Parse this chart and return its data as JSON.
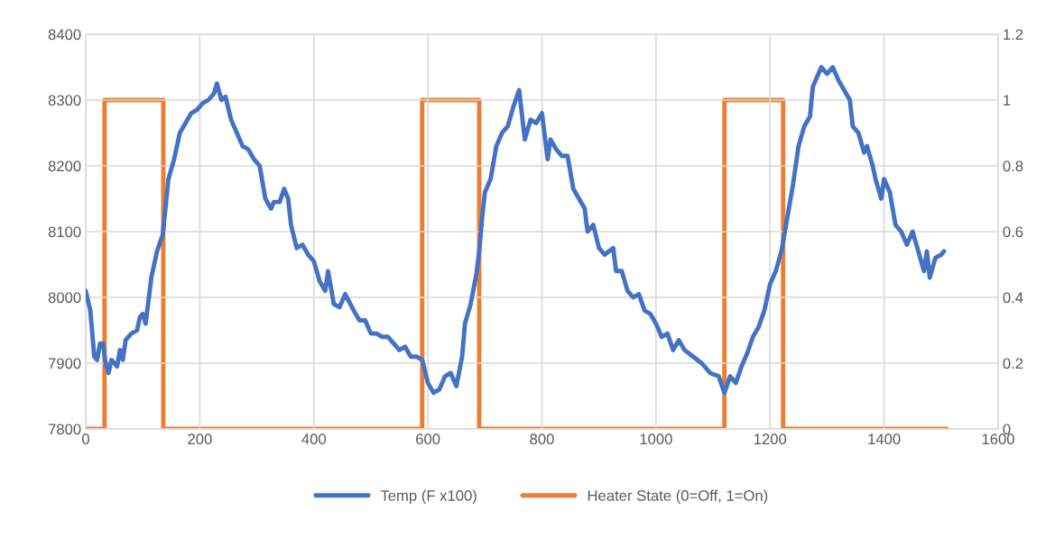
{
  "chart_data": {
    "type": "line",
    "xlim": [
      0,
      1600
    ],
    "xticks": [
      0,
      200,
      400,
      600,
      800,
      1000,
      1200,
      1400,
      1600
    ],
    "ylim": [
      7800,
      8400
    ],
    "yticks": [
      7800,
      7900,
      8000,
      8100,
      8200,
      8300,
      8400
    ],
    "y2lim": [
      0,
      1.2
    ],
    "y2ticks": [
      0,
      0.2,
      0.4,
      0.6,
      0.8,
      1,
      1.2
    ],
    "grid": true,
    "legend": "bottom",
    "series": [
      {
        "name": "Temp (F x100)",
        "color": "#4472c4",
        "x": [
          0,
          8,
          15,
          20,
          25,
          30,
          35,
          40,
          45,
          55,
          60,
          65,
          70,
          80,
          90,
          95,
          100,
          105,
          115,
          125,
          135,
          145,
          155,
          165,
          175,
          185,
          195,
          205,
          215,
          225,
          230,
          238,
          245,
          255,
          265,
          275,
          285,
          295,
          305,
          315,
          325,
          330,
          340,
          348,
          355,
          360,
          370,
          380,
          390,
          400,
          410,
          420,
          425,
          435,
          445,
          455,
          470,
          480,
          490,
          500,
          510,
          520,
          530,
          540,
          550,
          560,
          570,
          580,
          590,
          600,
          610,
          620,
          630,
          640,
          650,
          660,
          665,
          675,
          685,
          690,
          695,
          700,
          710,
          720,
          730,
          740,
          750,
          760,
          770,
          780,
          790,
          800,
          810,
          815,
          825,
          835,
          845,
          855,
          865,
          875,
          880,
          890,
          900,
          910,
          925,
          930,
          940,
          950,
          960,
          970,
          980,
          990,
          1000,
          1010,
          1020,
          1030,
          1040,
          1050,
          1065,
          1080,
          1095,
          1110,
          1120,
          1130,
          1140,
          1150,
          1160,
          1170,
          1180,
          1190,
          1200,
          1210,
          1220,
          1230,
          1240,
          1250,
          1260,
          1270,
          1275,
          1285,
          1290,
          1300,
          1310,
          1320,
          1330,
          1340,
          1345,
          1355,
          1365,
          1370,
          1380,
          1385,
          1395,
          1400,
          1410,
          1420,
          1430,
          1440,
          1450,
          1460,
          1470,
          1475,
          1480,
          1490,
          1500,
          1505
        ],
        "values": [
          8010,
          7980,
          7910,
          7905,
          7930,
          7930,
          7900,
          7885,
          7905,
          7895,
          7920,
          7905,
          7935,
          7945,
          7950,
          7970,
          7975,
          7960,
          8030,
          8070,
          8095,
          8180,
          8210,
          8250,
          8265,
          8280,
          8285,
          8295,
          8300,
          8310,
          8325,
          8300,
          8305,
          8270,
          8250,
          8230,
          8225,
          8210,
          8200,
          8150,
          8135,
          8145,
          8145,
          8165,
          8150,
          8110,
          8075,
          8080,
          8065,
          8055,
          8025,
          8010,
          8040,
          7990,
          7985,
          8005,
          7980,
          7965,
          7965,
          7945,
          7945,
          7940,
          7940,
          7930,
          7920,
          7925,
          7910,
          7910,
          7905,
          7870,
          7855,
          7860,
          7880,
          7885,
          7865,
          7910,
          7960,
          7990,
          8035,
          8070,
          8120,
          8160,
          8180,
          8230,
          8250,
          8260,
          8290,
          8315,
          8240,
          8270,
          8265,
          8280,
          8210,
          8240,
          8225,
          8215,
          8215,
          8165,
          8150,
          8135,
          8100,
          8110,
          8075,
          8065,
          8075,
          8040,
          8040,
          8010,
          8000,
          8005,
          7980,
          7975,
          7960,
          7940,
          7945,
          7920,
          7935,
          7920,
          7910,
          7900,
          7885,
          7880,
          7855,
          7880,
          7870,
          7895,
          7915,
          7940,
          7955,
          7980,
          8020,
          8040,
          8070,
          8120,
          8170,
          8230,
          8260,
          8275,
          8320,
          8340,
          8350,
          8340,
          8350,
          8330,
          8315,
          8300,
          8260,
          8250,
          8220,
          8230,
          8200,
          8180,
          8150,
          8180,
          8160,
          8110,
          8100,
          8080,
          8100,
          8070,
          8040,
          8070,
          8030,
          8060,
          8065,
          8070
        ]
      },
      {
        "name": "Heater State (0=Off, 1=On)",
        "color": "#ed7d31",
        "axis": "y2",
        "x": [
          0,
          33,
          33,
          136,
          136,
          590,
          590,
          690,
          690,
          1120,
          1120,
          1223,
          1223,
          1510
        ],
        "values": [
          0,
          0,
          1,
          1,
          0,
          0,
          1,
          1,
          0,
          0,
          1,
          1,
          0,
          0
        ]
      }
    ]
  }
}
